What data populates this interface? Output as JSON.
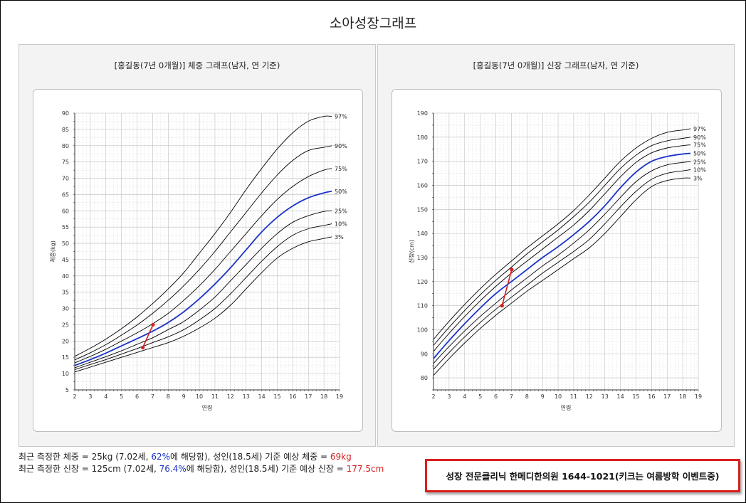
{
  "page_title": "소아성장그래프",
  "summary": {
    "weight": {
      "prefix": "최근 측정한 체중 = 25kg (7.02세, ",
      "pct": "62%",
      "mid": "에 해당함), 성인(18.5세) 기준 예상 체중 = ",
      "predicted": "69kg"
    },
    "height": {
      "prefix": "최근 측정한 신장 = 125cm (7.02세, ",
      "pct": "76.4%",
      "mid": "에 해당함), 성인(18.5세) 기준 예상 신장 = ",
      "predicted": "177.5cm"
    }
  },
  "promo": "성장 전문클리닉 한메디한의원 1644-1021(키크는 여름방학 이벤트중)",
  "colors": {
    "median": "#1a33c8",
    "measured": "#d42020",
    "curve": "#000000",
    "grid": "#d0d0d0"
  },
  "chart_data": [
    {
      "id": "weight",
      "type": "line",
      "title": "[홍길동(7년 0개월)] 체중 그래프(남자, 연 기준)",
      "xlabel": "연령",
      "ylabel": "체중(kg)",
      "xlim": [
        2,
        19
      ],
      "ylim": [
        5,
        90
      ],
      "x_ticks": [
        2,
        3,
        4,
        5,
        6,
        7,
        8,
        9,
        10,
        11,
        12,
        13,
        14,
        15,
        16,
        17,
        18,
        19
      ],
      "y_ticks": [
        5,
        10,
        15,
        20,
        25,
        30,
        35,
        40,
        45,
        50,
        55,
        60,
        65,
        70,
        75,
        80,
        85,
        90
      ],
      "grid": true,
      "x": [
        2,
        3,
        4,
        5,
        6,
        7,
        8,
        9,
        10,
        11,
        12,
        13,
        14,
        15,
        16,
        17,
        18,
        18.5
      ],
      "series": [
        {
          "name": "3%",
          "values": [
            10.5,
            12,
            13.5,
            15,
            16.5,
            18,
            19.5,
            21.5,
            24,
            27,
            31,
            36,
            41,
            45.5,
            48.5,
            50.5,
            51.5,
            52
          ]
        },
        {
          "name": "10%",
          "values": [
            11.2,
            12.8,
            14.3,
            16,
            17.7,
            19.5,
            21.3,
            23.5,
            26.5,
            30,
            34.5,
            39.5,
            44.5,
            49,
            52.5,
            54.5,
            55.5,
            56
          ]
        },
        {
          "name": "25%",
          "values": [
            11.8,
            13.5,
            15.2,
            17,
            19,
            21,
            23.5,
            26,
            29.5,
            33.5,
            38.5,
            43.5,
            48.5,
            53,
            56.5,
            58.5,
            59.8,
            60
          ]
        },
        {
          "name": "50%",
          "values": [
            12.5,
            14.3,
            16.3,
            18.5,
            20.7,
            23,
            25.7,
            29,
            33,
            37.5,
            42.5,
            48,
            53.5,
            58,
            61.5,
            64,
            65.5,
            66
          ]
        },
        {
          "name": "75%",
          "values": [
            13.3,
            15.3,
            17.5,
            20,
            22.5,
            25.3,
            28.5,
            32.5,
            37,
            42,
            47.5,
            53,
            58.5,
            63.5,
            67.5,
            70.5,
            72.5,
            73
          ]
        },
        {
          "name": "90%",
          "values": [
            14.2,
            16.4,
            18.9,
            21.8,
            24.9,
            28.5,
            32.5,
            37,
            42,
            47.5,
            53.5,
            59.5,
            65.5,
            71,
            75.5,
            78.5,
            79.5,
            80
          ]
        },
        {
          "name": "97%",
          "values": [
            15.3,
            17.8,
            20.6,
            23.8,
            27.4,
            31.5,
            36,
            41,
            47,
            53,
            59.5,
            66.5,
            73,
            79,
            84,
            87.5,
            89,
            89
          ]
        }
      ],
      "measured": {
        "x": [
          6.37,
          7.02
        ],
        "y": [
          18,
          25
        ]
      }
    },
    {
      "id": "height",
      "type": "line",
      "title": "[홍길동(7년 0개월)] 신장 그래프(남자, 연 기준)",
      "xlabel": "연령",
      "ylabel": "신장(cm)",
      "xlim": [
        2,
        19
      ],
      "ylim": [
        75,
        190
      ],
      "x_ticks": [
        2,
        3,
        4,
        5,
        6,
        7,
        8,
        9,
        10,
        11,
        12,
        13,
        14,
        15,
        16,
        17,
        18,
        19
      ],
      "y_ticks": [
        80,
        90,
        100,
        110,
        120,
        130,
        140,
        150,
        160,
        170,
        180,
        190
      ],
      "grid": true,
      "x": [
        2,
        3,
        4,
        5,
        6,
        7,
        8,
        9,
        10,
        11,
        12,
        13,
        14,
        15,
        16,
        17,
        18,
        18.5
      ],
      "series": [
        {
          "name": "3%",
          "values": [
            81,
            88,
            94.5,
            100.5,
            106,
            111,
            116,
            120.5,
            125,
            129.5,
            134,
            140,
            147,
            154,
            159.5,
            162,
            163,
            163
          ]
        },
        {
          "name": "10%",
          "values": [
            83.5,
            90.5,
            97,
            103,
            108.5,
            113.5,
            118.5,
            123.5,
            128,
            132.5,
            137.5,
            144,
            151,
            157.5,
            162.5,
            165,
            166,
            166.5
          ]
        },
        {
          "name": "25%",
          "values": [
            86,
            93,
            99.5,
            105.5,
            111,
            116.5,
            121.5,
            126.5,
            131,
            136,
            141.5,
            148,
            155,
            161.5,
            166,
            168.5,
            169.5,
            169.8
          ]
        },
        {
          "name": "50%",
          "values": [
            88,
            95.5,
            102.5,
            109,
            115,
            120,
            125,
            130,
            134.5,
            139.5,
            145,
            151.5,
            159,
            165.5,
            170,
            172,
            173,
            173.3
          ]
        },
        {
          "name": "75%",
          "values": [
            91,
            98.5,
            105.5,
            112,
            118,
            123.5,
            128.5,
            133.5,
            138.5,
            143.5,
            149.5,
            156.5,
            163.5,
            169.5,
            173.5,
            175.5,
            176.5,
            176.8
          ]
        },
        {
          "name": "90%",
          "values": [
            93.5,
            101,
            108,
            114.5,
            120.5,
            126,
            131.5,
            136.5,
            141.5,
            147,
            153,
            160,
            167,
            172.5,
            176.5,
            178.5,
            179.5,
            180
          ]
        },
        {
          "name": "97%",
          "values": [
            96,
            103.5,
            110.5,
            117,
            123,
            128.5,
            134,
            139,
            144,
            149.5,
            156,
            163,
            170,
            175.5,
            179.5,
            182,
            183,
            183.5
          ]
        }
      ],
      "measured": {
        "x": [
          6.4,
          7.02
        ],
        "y": [
          110,
          125
        ]
      }
    }
  ]
}
